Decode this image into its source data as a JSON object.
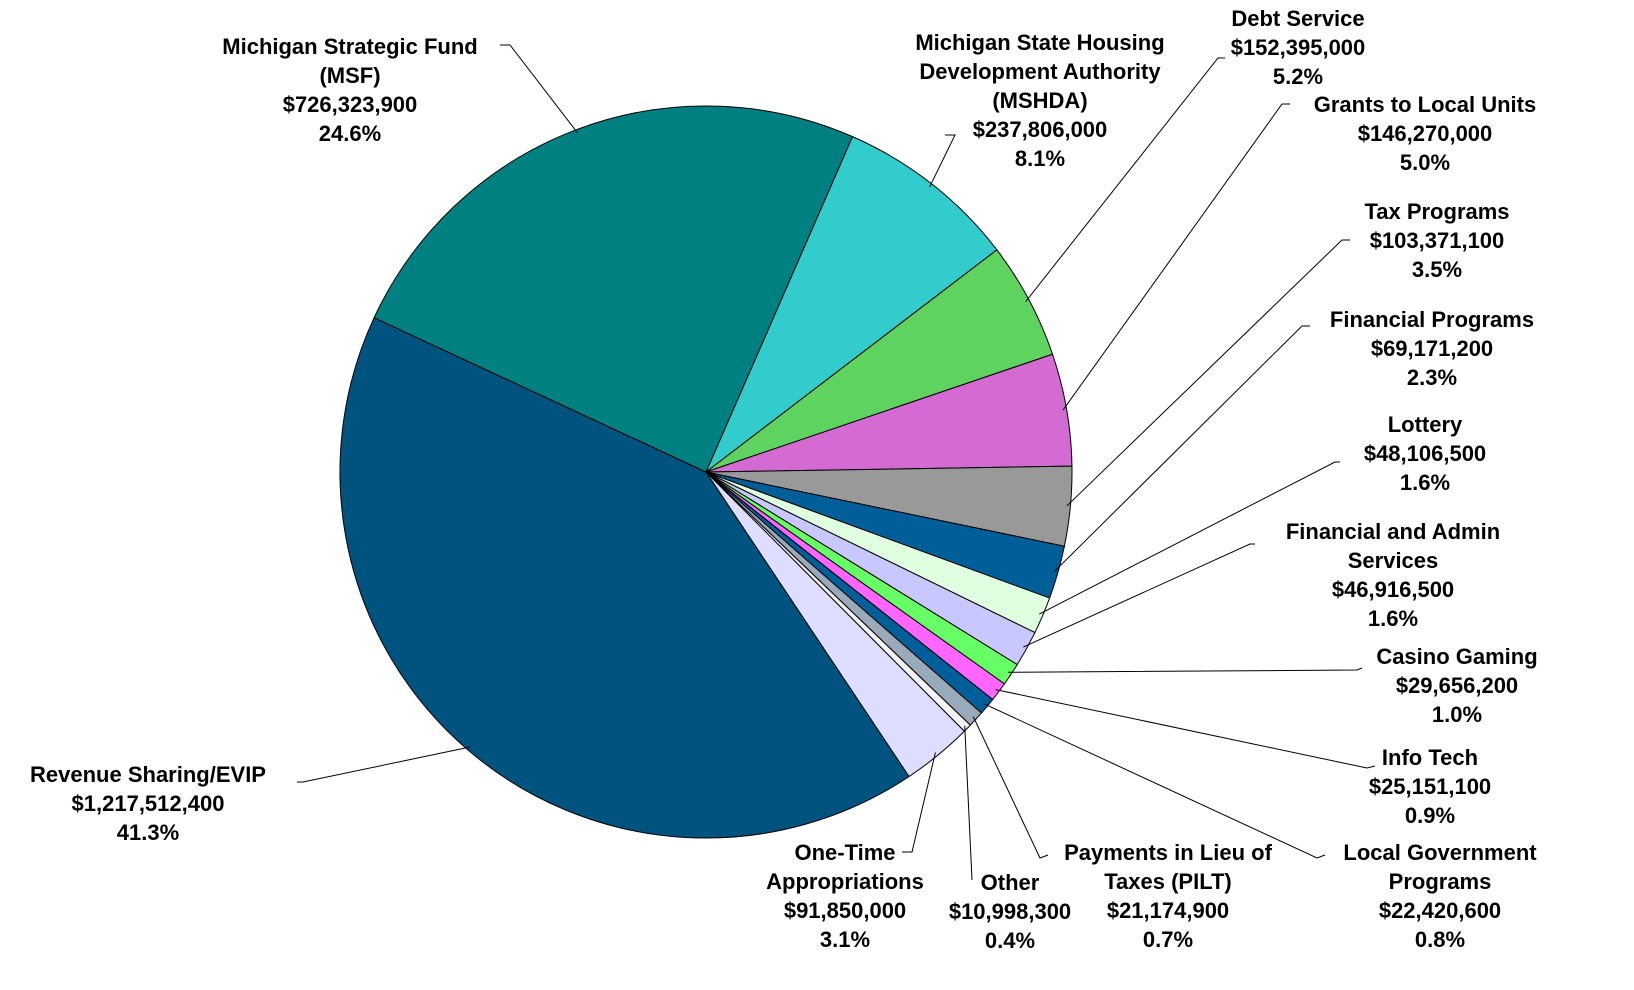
{
  "chart_data": {
    "type": "pie",
    "categories": [
      "Michigan State Housing Development Authority (MSHDA)",
      "Debt Service",
      "Grants to Local Units",
      "Tax Programs",
      "Financial Programs",
      "Lottery",
      "Financial and Admin Services",
      "Casino Gaming",
      "Info Tech",
      "Local Government Programs",
      "Payments in Lieu of Taxes (PILT)",
      "Other",
      "One-Time Appropriations",
      "Revenue Sharing/EVIP",
      "Michigan Strategic Fund (MSF)"
    ],
    "values": [
      237806000,
      152395000,
      146270000,
      103371100,
      69171200,
      48106500,
      46916500,
      29656200,
      25151100,
      22420600,
      21174900,
      10998300,
      91850000,
      1217512400,
      726323900
    ],
    "value_labels": [
      "$237,806,000",
      "$152,395,000",
      "$146,270,000",
      "$103,371,100",
      "$69,171,200",
      "$48,106,500",
      "$46,916,500",
      "$29,656,200",
      "$25,151,100",
      "$22,420,600",
      "$21,174,900",
      "$10,998,300",
      "$91,850,000",
      "$1,217,512,400",
      "$726,323,900"
    ],
    "percentages": [
      8.1,
      5.2,
      5.0,
      3.5,
      2.3,
      1.6,
      1.6,
      1.0,
      0.9,
      0.8,
      0.7,
      0.4,
      3.1,
      41.3,
      24.6
    ],
    "percentage_labels": [
      "8.1%",
      "5.2%",
      "5.0%",
      "3.5%",
      "2.3%",
      "1.6%",
      "1.6%",
      "1.0%",
      "0.9%",
      "0.8%",
      "0.7%",
      "0.4%",
      "3.1%",
      "41.3%",
      "24.6%"
    ],
    "colors": [
      "#33cccc",
      "#5fd35f",
      "#d36bd3",
      "#999999",
      "#005f99",
      "#e0ffe0",
      "#c8c8ff",
      "#66ff66",
      "#ff66ff",
      "#005f99",
      "#99aabb",
      "#f4f4f4",
      "#ddddff",
      "#00527f",
      "#008080"
    ]
  }
}
